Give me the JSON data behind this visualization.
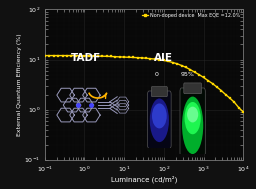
{
  "background_color": "#111111",
  "plot_bg_color": "#080808",
  "xlabel": "Luminance (cd/m²)",
  "ylabel": "External Quantum Efficiency (%)",
  "legend_label": "Non-doped device  Max EQE =12.0%",
  "line_color": "#FFD700",
  "marker_color": "#FFD700",
  "tadf_label": "TADF",
  "aie_label": "AIE",
  "label_0": "0",
  "label_95": "95%",
  "luminance_data": [
    0.1,
    0.13,
    0.17,
    0.22,
    0.28,
    0.36,
    0.46,
    0.6,
    0.77,
    1.0,
    1.3,
    1.7,
    2.2,
    2.8,
    3.6,
    4.6,
    6.0,
    7.7,
    10,
    13,
    17,
    22,
    28,
    36,
    46,
    60,
    77,
    100,
    130,
    170,
    220,
    280,
    360,
    460,
    600,
    770,
    1000,
    1300,
    1700,
    2200,
    2800,
    3600,
    4600,
    6000,
    7700,
    10000
  ],
  "eqe_data": [
    12.0,
    12.0,
    12.0,
    12.0,
    12.0,
    12.0,
    12.0,
    11.95,
    11.9,
    11.85,
    11.8,
    11.75,
    11.7,
    11.65,
    11.6,
    11.5,
    11.4,
    11.3,
    11.2,
    11.1,
    11.0,
    10.9,
    10.8,
    10.6,
    10.4,
    10.2,
    9.9,
    9.6,
    9.2,
    8.7,
    8.2,
    7.6,
    7.0,
    6.3,
    5.6,
    5.0,
    4.4,
    3.8,
    3.3,
    2.8,
    2.4,
    2.0,
    1.7,
    1.4,
    1.1,
    0.9
  ],
  "mol_color": "#9999bb",
  "arrow_color": "#FFB300",
  "blue_vial": "#1133cc",
  "green_vial": "#00ee44"
}
